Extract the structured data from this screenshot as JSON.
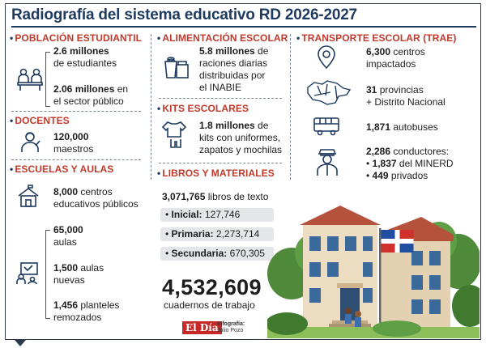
{
  "title": "Radiografía del sistema educativo RD 2026-2027",
  "poblacion": {
    "heading": "POBLACIÓN ESTUDIANTIL",
    "l1_num": "2.6 millones",
    "l1_txt": "de estudiantes",
    "l2_num": "2.06 millones",
    "l2_a": "en",
    "l2_b": "el sector público",
    "icon": "students-icon"
  },
  "docentes": {
    "heading": "DOCENTES",
    "num": "120,000",
    "txt": "maestros",
    "icon": "teacher-icon"
  },
  "escuelas": {
    "heading": "ESCUELAS Y AULAS",
    "e1_num": "8,000",
    "e1_a": "centros",
    "e1_b": "educativos públicos",
    "e2_num": "65,000",
    "e2_txt": "aulas",
    "e3_num": "1,500",
    "e3_a": "aulas",
    "e3_b": "nuevas",
    "e4_num": "1,456",
    "e4_a": "planteles",
    "e4_b": "remozados",
    "icons": [
      "school-icon",
      "classroom-icon"
    ]
  },
  "alimentacion": {
    "heading": "ALIMENTACIÓN ESCOLAR",
    "num": "5.8 millones",
    "a": "de",
    "b": "raciones diarias",
    "c": "distribuidas por",
    "d": "el INABIE",
    "icon": "food-ration-icon"
  },
  "kits": {
    "heading": "KITS ESCOLARES",
    "num": "1.8 millones",
    "a": "de",
    "b": "kits con uniformes,",
    "c": "zapatos y mochilas",
    "icon": "uniform-icon"
  },
  "libros": {
    "heading": "LIBROS Y MATERIALES",
    "num": "3,071,765",
    "txt": "libros de texto",
    "inicial_label": "Inicial:",
    "inicial_val": "127,746",
    "primaria_label": "Primaria:",
    "primaria_val": "2,273,714",
    "secundaria_label": "Secundaria:",
    "secundaria_val": "670,305",
    "cuadernos_num": "4,532,609",
    "cuadernos_txt": "cuadernos de trabajo"
  },
  "transporte": {
    "heading": "TRANSPORTE ESCOLAR (TRAE)",
    "t1_num": "6,300",
    "t1_a": "centros",
    "t1_b": "impactados",
    "t2_num": "31",
    "t2_a": "provincias",
    "t2_b": "+ Distrito Nacional",
    "t3_num": "1,871",
    "t3_txt": "autobuses",
    "t4_num": "2,286",
    "t4_txt": "conductores:",
    "t4_b_num": "1,837",
    "t4_b_txt": "del MINERD",
    "t4_c_num": "449",
    "t4_c_txt": "privados",
    "icons": [
      "location-pin-icon",
      "map-icon",
      "bus-icon",
      "driver-icon"
    ]
  },
  "footer": {
    "logo": "El Día",
    "credit_label": "Infografía:",
    "credit_name": "Julio Pozo"
  },
  "colors": {
    "heading": "#c0392b",
    "title": "#1f3a5f",
    "icon": "#1f3a5f"
  }
}
